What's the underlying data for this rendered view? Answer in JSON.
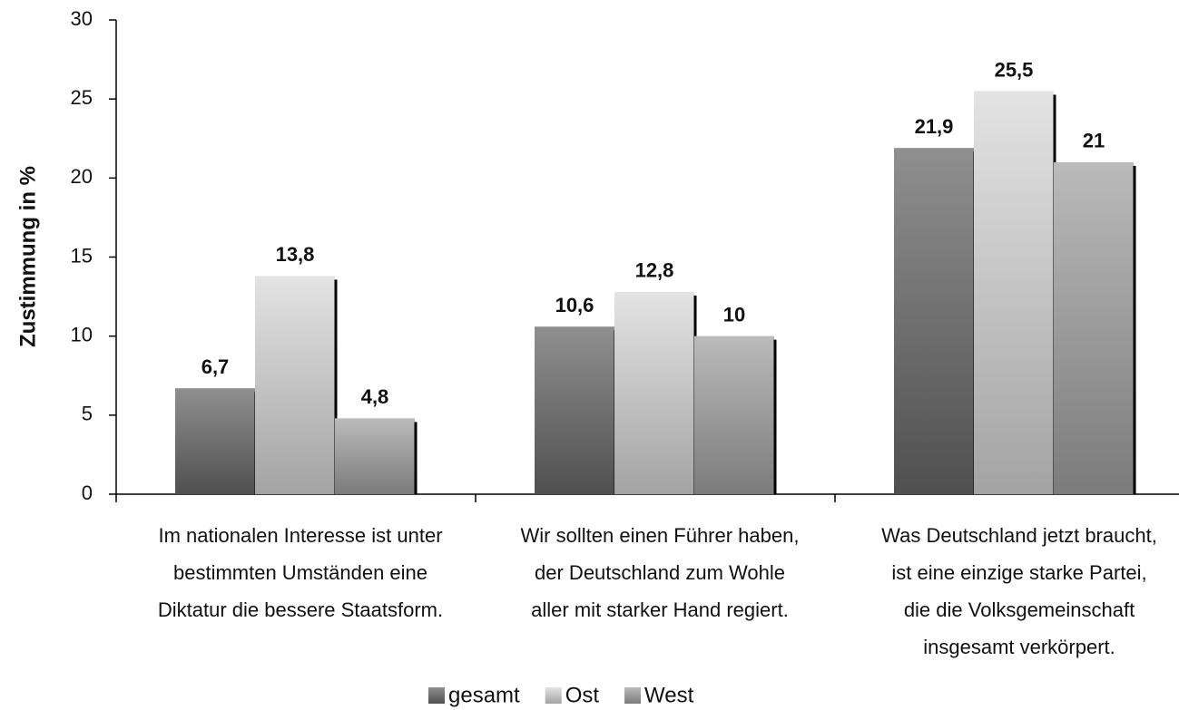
{
  "chart_data": {
    "type": "bar",
    "y_label": "Zustimmung in %",
    "categories": [
      [
        "Im nationalen Interesse ist unter",
        "bestimmten Umständen eine",
        "Diktatur die bessere Staatsform."
      ],
      [
        "Wir sollten einen Führer haben,",
        "der Deutschland zum Wohle",
        "aller mit starker Hand regiert."
      ],
      [
        "Was Deutschland jetzt braucht,",
        "ist eine einzige starke Partei,",
        "die die Volksgemeinschaft",
        "insgesamt verkörpert."
      ]
    ],
    "series": [
      {
        "name": "gesamt",
        "color": "#6a6a6a",
        "values": [
          6.7,
          10.6,
          21.9
        ],
        "value_labels": [
          "6,7",
          "10,6",
          "21,9"
        ]
      },
      {
        "name": "Ost",
        "color": "#dadada",
        "values": [
          13.8,
          12.8,
          25.5
        ],
        "value_labels": [
          "13,8",
          "12,8",
          "25,5"
        ]
      },
      {
        "name": "West",
        "color": "#a4a4a4",
        "values": [
          4.8,
          10,
          21
        ],
        "value_labels": [
          "4,8",
          "10",
          "21"
        ]
      }
    ],
    "ylim": [
      0,
      30
    ],
    "yticks": [
      0,
      5,
      10,
      15,
      20,
      25,
      30
    ]
  }
}
